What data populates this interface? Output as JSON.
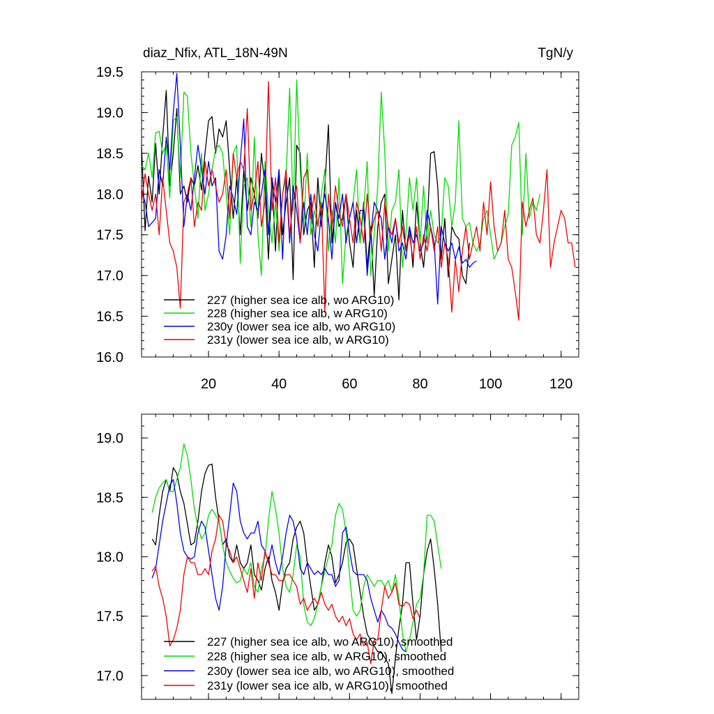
{
  "chart_data": [
    {
      "type": "line",
      "title": "diaz_Nfix, ATL_18N-49N",
      "units": "TgN/y",
      "xlabel": "",
      "ylabel": "",
      "xlim": [
        1,
        125
      ],
      "ylim": [
        16.0,
        19.5
      ],
      "xticks": [
        20,
        40,
        60,
        80,
        100,
        120
      ],
      "yticks": [
        16.0,
        16.5,
        17.0,
        17.5,
        18.0,
        18.5,
        19.0,
        19.5
      ],
      "ytick_labels": [
        "16.0",
        "16.5",
        "17.0",
        "17.5",
        "18.0",
        "18.5",
        "19.0",
        "19.5"
      ],
      "legend_position": "bottom-left",
      "series": [
        {
          "name": "227 (higher sea ice alb, wo ARG10)",
          "color": "#000000",
          "x_start": 1,
          "values": [
            18.58,
            17.55,
            18.22,
            17.9,
            18.62,
            18.0,
            18.7,
            19.27,
            18.1,
            18.5,
            19.05,
            18.0,
            18.1,
            17.9,
            18.2,
            18.1,
            18.35,
            18.05,
            18.5,
            18.9,
            18.95,
            18.5,
            18.8,
            18.7,
            18.9,
            18.3,
            17.7,
            18.2,
            17.5,
            18.3,
            17.8,
            18.2,
            18.0,
            17.7,
            18.5,
            18.1,
            17.2,
            18.2,
            17.3,
            18.3,
            17.5,
            17.9,
            18.2,
            16.95,
            18.6,
            18.5,
            17.5,
            17.8,
            17.9,
            17.1,
            18.2,
            17.6,
            18.1,
            18.85,
            17.4,
            17.9,
            17.6,
            17.7,
            18.0,
            17.4,
            17.1,
            17.8,
            17.4,
            17.9,
            17.1,
            17.6,
            16.75,
            17.6,
            17.9,
            18.0,
            16.9,
            17.2,
            17.5,
            16.7,
            17.8,
            17.3,
            17.6,
            17.1,
            17.9,
            17.4,
            17.1,
            17.6,
            18.5,
            18.52,
            18.1,
            17.2,
            17.7,
            16.98,
            17.6,
            17.5,
            17.45,
            17.0,
            16.9,
            17.4
          ]
        },
        {
          "name": "228 (higher sea ice alb, w ARG10)",
          "color": "#00dd00",
          "x_start": 1,
          "values": [
            18.35,
            18.3,
            18.5,
            18.2,
            18.75,
            18.77,
            18.5,
            18.6,
            17.95,
            18.9,
            18.95,
            18.2,
            19.25,
            19.2,
            18.5,
            18.1,
            17.7,
            18.5,
            17.8,
            18.0,
            18.3,
            18.55,
            18.6,
            18.5,
            18.0,
            17.5,
            18.5,
            18.6,
            17.15,
            18.1,
            18.2,
            17.6,
            18.7,
            17.5,
            17.0,
            18.4,
            17.8,
            17.4,
            17.9,
            17.3,
            18.0,
            18.2,
            19.3,
            17.8,
            19.4,
            18.3,
            17.6,
            18.5,
            17.5,
            17.8,
            17.6,
            18.0,
            18.3,
            17.3,
            17.8,
            17.4,
            18.2,
            16.9,
            17.5,
            17.7,
            17.9,
            18.3,
            17.4,
            17.8,
            18.4,
            17.0,
            17.5,
            18.1,
            19.25,
            18.5,
            17.3,
            17.8,
            17.9,
            18.3,
            17.1,
            17.5,
            18.2,
            17.8,
            18.2,
            17.4,
            18.1,
            17.4,
            17.8,
            17.5,
            17.4,
            17.5,
            18.2,
            18.1,
            17.6,
            17.9,
            18.9,
            17.7,
            17.6,
            17.65,
            17.4,
            17.3,
            17.4,
            17.7,
            17.8,
            17.5,
            17.2,
            17.3,
            17.4,
            17.6,
            17.75,
            18.6,
            18.7,
            18.88,
            17.5,
            18.5,
            17.7,
            17.9,
            17.8,
            18.0
          ]
        },
        {
          "name": "230y (lower sea ice alb, wo ARG10)",
          "color": "#0000ee",
          "x_start": 1,
          "values": [
            18.05,
            17.9,
            17.6,
            17.65,
            17.7,
            18.3,
            18.1,
            18.7,
            18.3,
            19.0,
            19.48,
            18.6,
            17.6,
            18.0,
            17.8,
            18.2,
            18.6,
            18.3,
            18.0,
            18.4,
            18.1,
            18.2,
            17.3,
            17.2,
            17.5,
            18.1,
            17.95,
            17.75,
            18.4,
            18.92,
            17.6,
            17.5,
            17.9,
            17.8,
            18.0,
            18.3,
            17.5,
            18.2,
            17.9,
            18.3,
            17.2,
            18.2,
            17.4,
            18.1,
            17.8,
            17.4,
            17.9,
            17.5,
            18.0,
            17.5,
            17.3,
            17.8,
            18.0,
            17.7,
            17.2,
            17.9,
            17.7,
            18.0,
            17.4,
            17.7,
            17.9,
            17.4,
            17.8,
            17.8,
            17.0,
            17.5,
            17.9,
            17.8,
            17.7,
            17.2,
            17.6,
            17.4,
            17.7,
            17.3,
            17.4,
            17.2,
            17.6,
            17.4,
            17.5,
            17.3,
            17.4,
            17.8,
            17.6,
            17.4,
            16.65,
            17.6,
            17.4,
            17.3,
            17.4,
            17.2,
            17.35,
            17.15,
            17.2,
            17.1,
            17.15,
            17.18
          ]
        },
        {
          "name": "231y (lower sea ice alb, w ARG10)",
          "color": "#ee0000",
          "x_start": 1,
          "values": [
            17.9,
            18.25,
            18.0,
            17.8,
            18.0,
            17.5,
            18.2,
            17.8,
            17.4,
            17.3,
            17.1,
            16.6,
            17.9,
            18.0,
            18.2,
            17.6,
            17.9,
            17.8,
            18.4,
            18.1,
            18.3,
            18.1,
            17.9,
            18.0,
            18.3,
            17.7,
            18.5,
            18.2,
            18.4,
            18.3,
            19.05,
            17.8,
            18.0,
            18.4,
            17.6,
            17.9,
            19.38,
            17.8,
            18.2,
            17.4,
            18.0,
            18.3,
            17.5,
            17.9,
            18.1,
            17.4,
            18.2,
            18.3,
            17.7,
            18.0,
            17.6,
            17.9,
            16.55,
            18.0,
            17.6,
            18.1,
            17.8,
            17.6,
            18.0,
            17.7,
            17.4,
            17.9,
            17.7,
            17.4,
            18.0,
            17.5,
            17.7,
            17.8,
            17.3,
            17.9,
            17.6,
            17.5,
            17.7,
            17.4,
            17.6,
            17.3,
            17.5,
            17.2,
            17.6,
            17.2,
            17.5,
            17.3,
            17.6,
            17.3,
            17.6,
            17.1,
            17.4,
            17.2,
            16.55,
            17.2,
            16.8,
            17.3,
            17.6,
            17.2,
            17.4,
            17.6,
            17.3,
            17.9,
            17.5,
            18.15,
            17.6,
            17.3,
            17.4,
            17.8,
            17.2,
            17.1,
            16.8,
            16.45,
            17.9,
            17.6,
            17.8,
            17.95,
            17.5,
            17.4,
            17.8,
            18.3,
            17.1,
            17.4,
            17.6,
            17.8,
            17.7,
            17.4,
            17.4,
            17.1
          ]
        }
      ]
    },
    {
      "type": "line",
      "title": "",
      "xlabel": "",
      "ylabel": "",
      "xlim": [
        1,
        125
      ],
      "ylim": [
        16.8,
        19.2
      ],
      "xticks": [
        20,
        40,
        60,
        80,
        100,
        120
      ],
      "yticks": [
        17.0,
        17.5,
        18.0,
        18.5,
        19.0
      ],
      "ytick_labels": [
        "17.0",
        "17.5",
        "18.0",
        "18.5",
        "19.0"
      ],
      "legend_position": "bottom-left",
      "series": [
        {
          "name": "227 (higher sea ice alb, wo ARG10), smoothed",
          "color": "#000000",
          "x_start": 4,
          "values": [
            18.15,
            18.1,
            18.35,
            18.55,
            18.65,
            18.55,
            18.75,
            18.7,
            18.55,
            18.45,
            18.28,
            18.1,
            18.12,
            18.3,
            18.55,
            18.7,
            18.77,
            18.78,
            18.5,
            18.3,
            18.1,
            18.15,
            18.0,
            17.95,
            18.1,
            17.95,
            17.9,
            17.95,
            18.1,
            17.85,
            17.8,
            17.72,
            17.9,
            18.0,
            17.8,
            17.7,
            17.55,
            17.78,
            17.9,
            17.95,
            18.15,
            18.25,
            18.3,
            18.2,
            17.95,
            17.75,
            17.55,
            17.6,
            17.75,
            17.95,
            18.1,
            18.0,
            17.78,
            17.85,
            17.95,
            18.12,
            18.15,
            18.1,
            17.9,
            17.7,
            17.5,
            17.35,
            17.3,
            17.25,
            17.2,
            17.2,
            17.15,
            17.1,
            16.85,
            17.15,
            17.4,
            17.6,
            17.95,
            17.95,
            17.6,
            17.3,
            17.5,
            17.85,
            18.05,
            18.15,
            17.9,
            17.6,
            17.2
          ]
        },
        {
          "name": "228 (higher sea ice alb, w ARG10), smoothed",
          "color": "#00dd00",
          "x_start": 4,
          "values": [
            18.37,
            18.5,
            18.58,
            18.62,
            18.65,
            18.55,
            18.55,
            18.65,
            18.75,
            18.95,
            18.85,
            18.65,
            18.4,
            18.25,
            18.15,
            18.2,
            18.35,
            18.4,
            18.35,
            18.3,
            18.1,
            17.95,
            17.88,
            17.82,
            17.78,
            17.8,
            17.9,
            17.85,
            17.95,
            17.75,
            17.7,
            17.9,
            18.0,
            18.3,
            18.55,
            18.4,
            18.2,
            17.9,
            17.75,
            17.7,
            17.85,
            18.1,
            18.0,
            17.6,
            17.45,
            17.42,
            17.48,
            17.6,
            17.75,
            17.88,
            18.0,
            18.1,
            18.35,
            18.45,
            18.4,
            18.2,
            17.85,
            17.55,
            17.5,
            17.55,
            17.75,
            17.85,
            17.8,
            17.75,
            17.8,
            17.8,
            17.75,
            17.8,
            17.7,
            17.85,
            17.65,
            17.35,
            17.2,
            17.3,
            17.45,
            17.6,
            17.65,
            17.85,
            18.35,
            18.35,
            18.3,
            18.1,
            17.9
          ]
        },
        {
          "name": "230y (lower sea ice alb, wo ARG10), smoothed",
          "color": "#0000ee",
          "x_start": 4,
          "values": [
            17.82,
            17.9,
            18.1,
            18.3,
            18.45,
            18.6,
            18.65,
            18.45,
            18.2,
            18.05,
            18.0,
            17.98,
            18.0,
            18.2,
            18.3,
            18.25,
            18.05,
            17.85,
            17.65,
            17.55,
            17.75,
            18.1,
            18.35,
            18.62,
            18.55,
            18.3,
            18.2,
            18.15,
            18.2,
            18.2,
            18.3,
            18.1,
            18.05,
            17.95,
            18.1,
            17.95,
            17.85,
            18.0,
            18.2,
            18.35,
            18.3,
            18.15,
            17.9,
            17.85,
            17.95,
            17.9,
            17.85,
            17.88,
            17.85,
            17.9,
            17.85,
            17.85,
            17.75,
            17.8,
            18.2,
            18.25,
            18.05,
            17.88,
            17.85,
            17.85,
            17.85,
            17.8,
            17.65,
            17.55,
            17.45,
            17.55,
            17.5,
            17.42,
            17.4,
            17.35,
            17.28,
            17.22,
            17.2
          ]
        },
        {
          "name": "231y (lower sea ice alb, w ARG10), smoothed",
          "color": "#ee0000",
          "x_start": 4,
          "values": [
            17.88,
            17.92,
            17.75,
            17.65,
            17.5,
            17.25,
            17.3,
            17.4,
            17.55,
            17.85,
            18.0,
            17.95,
            17.95,
            17.85,
            17.85,
            17.9,
            17.85,
            18.05,
            18.15,
            18.35,
            18.3,
            18.1,
            18.05,
            17.95,
            18.0,
            17.9,
            17.8,
            17.7,
            17.9,
            17.65,
            17.95,
            17.8,
            18.05,
            17.95,
            17.85,
            17.85,
            17.8,
            17.8,
            17.85,
            17.85,
            17.8,
            17.75,
            17.6,
            17.65,
            17.55,
            17.6,
            17.65,
            17.6,
            17.7,
            17.6,
            17.55,
            17.6,
            17.5,
            17.45,
            17.5,
            17.42,
            17.48,
            17.35,
            17.3,
            17.35,
            17.25,
            17.28,
            17.1,
            17.3,
            17.3,
            17.55,
            17.75,
            17.65,
            17.7,
            17.78,
            17.6,
            17.58,
            17.62,
            17.6,
            17.48,
            17.55,
            17.48
          ]
        }
      ]
    }
  ]
}
